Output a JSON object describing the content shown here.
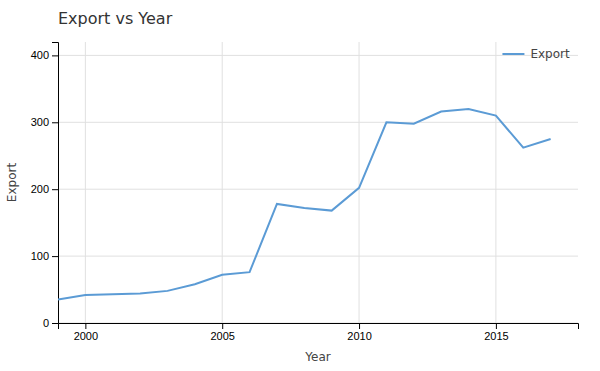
{
  "chart_data": {
    "type": "line",
    "title": "Export vs Year",
    "xlabel": "Year",
    "ylabel": "Export",
    "x": [
      1999,
      2000,
      2001,
      2002,
      2003,
      2004,
      2005,
      2006,
      2007,
      2008,
      2009,
      2010,
      2011,
      2012,
      2013,
      2014,
      2015,
      2016,
      2017
    ],
    "series": [
      {
        "name": "Export",
        "color": "#5b9bd5",
        "values": [
          35,
          42,
          43,
          44,
          48,
          58,
          72,
          76,
          178,
          172,
          168,
          202,
          300,
          298,
          316,
          320,
          310,
          262,
          275
        ]
      }
    ],
    "xlim": [
      1999,
      2018
    ],
    "ylim": [
      0,
      420
    ],
    "xticks": [
      2000,
      2005,
      2010,
      2015
    ],
    "yticks": [
      0,
      100,
      200,
      300,
      400
    ],
    "grid": true,
    "legend": "top-right"
  }
}
